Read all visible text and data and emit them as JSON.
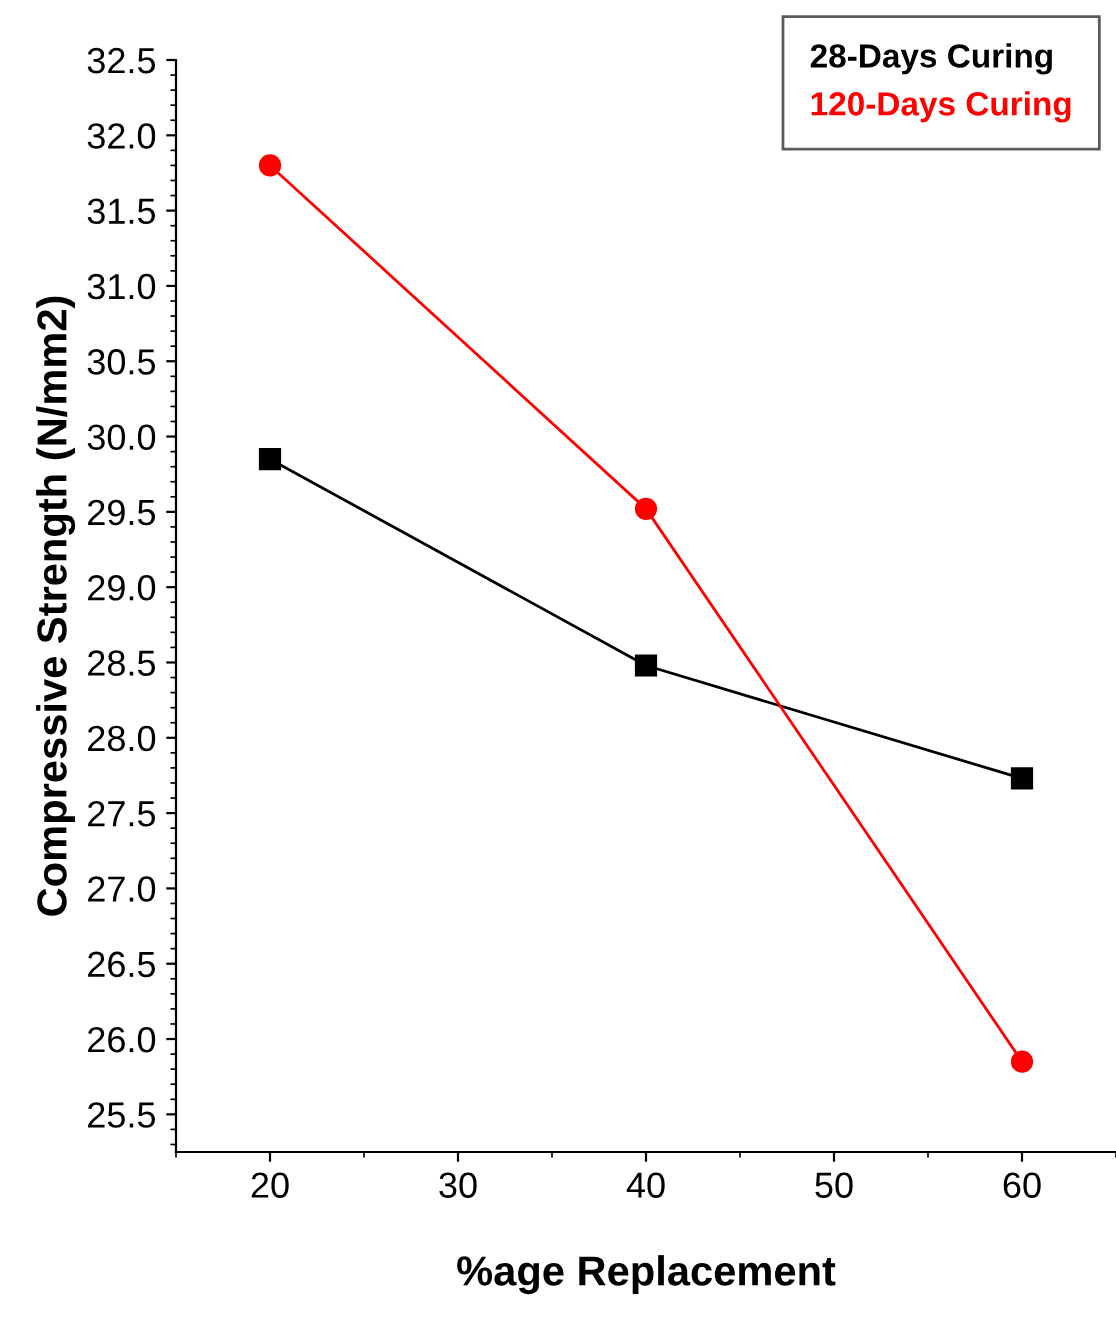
{
  "chart_data": {
    "type": "line",
    "xlabel": "%age Replacement",
    "ylabel": "Compressive Strength (N/mm2)",
    "x": [
      20,
      40,
      60
    ],
    "series": [
      {
        "name": "28-Days Curing",
        "color": "#000000",
        "values": [
          29.85,
          28.48,
          27.73
        ],
        "marker": "square"
      },
      {
        "name": "120-Days Curing",
        "color": "#ff0000",
        "values": [
          31.8,
          29.52,
          25.85
        ],
        "marker": "circle"
      }
    ],
    "xlim": [
      15,
      65
    ],
    "xticks": [
      20,
      30,
      40,
      50,
      60
    ],
    "ylim": [
      25.25,
      32.5
    ],
    "yticks": [
      25.5,
      {
        "value": 26,
        "label": "26.0"
      },
      26.5,
      {
        "value": 27,
        "label": "27.0"
      },
      27.5,
      {
        "value": 28,
        "label": "28.0"
      },
      28.5,
      {
        "value": 29,
        "label": "29.0"
      },
      29.5,
      {
        "value": 30,
        "label": "30.0"
      },
      30.5,
      {
        "value": 31,
        "label": "31.0"
      },
      31.5,
      {
        "value": 32,
        "label": "32.0"
      },
      32.5
    ],
    "grid": false,
    "legend": "top right",
    "line_style": "solid"
  }
}
